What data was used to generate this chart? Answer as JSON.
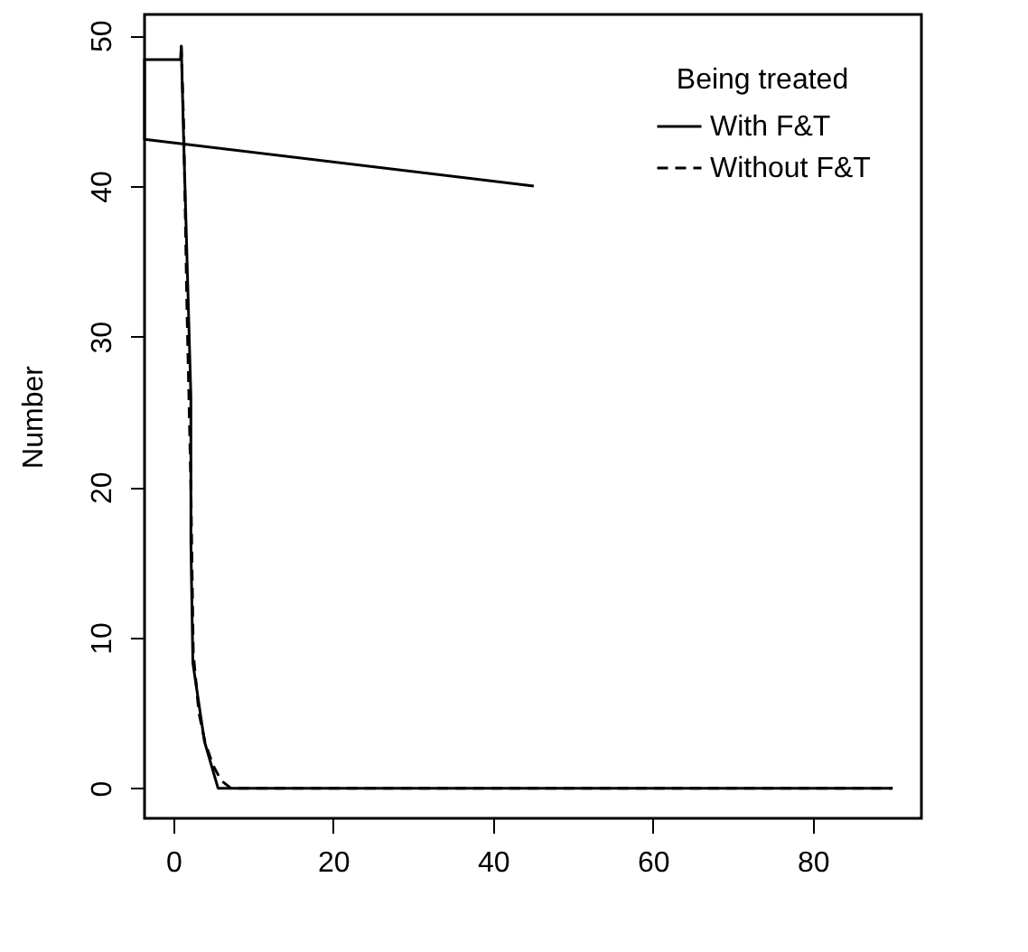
{
  "chart_data": {
    "type": "line",
    "ylabel": "Number",
    "legend_title": "Being treated",
    "legend": "top right",
    "grid": false,
    "xlim": [
      -3.6,
      93.6
    ],
    "ylim": [
      -2,
      51.4
    ],
    "xticks": [
      0,
      20,
      40,
      60,
      80
    ],
    "yticks": [
      0,
      10,
      20,
      30,
      40,
      50
    ],
    "series": [
      {
        "name": "With F&T",
        "color": "#000000",
        "line_style": "solid",
        "x": [
          45.1,
          -3.6,
          -3.6,
          0.9,
          1.0,
          1.3,
          2.2,
          2.2,
          2.45,
          3.9,
          5.6,
          90
        ],
        "values": [
          40.0,
          43.1,
          48.4,
          48.4,
          49.3,
          43,
          26,
          16.3,
          8.3,
          3.1,
          0,
          0
        ]
      },
      {
        "name": "Without F&T",
        "color": "#000000",
        "line_style": "dashed",
        "x": [
          1.0,
          1.3,
          1.7,
          2.2,
          2.5,
          3.2,
          4,
          5,
          6,
          7.2,
          90
        ],
        "values": [
          49.3,
          44,
          32,
          20,
          9,
          5,
          3,
          1.5,
          0.5,
          0,
          0
        ]
      }
    ]
  }
}
